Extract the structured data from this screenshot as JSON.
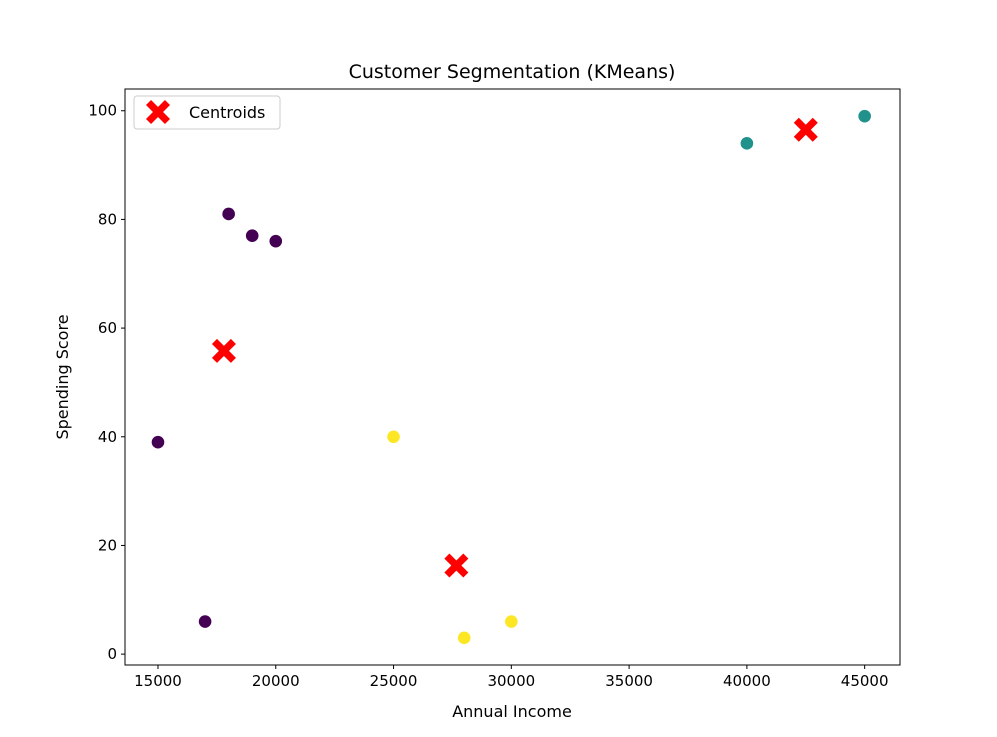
{
  "chart_data": {
    "type": "scatter",
    "title": "Customer Segmentation (KMeans)",
    "xlabel": "Annual Income",
    "ylabel": "Spending Score",
    "xlim": [
      13600,
      46500
    ],
    "ylim": [
      -2,
      104
    ],
    "xticks": [
      15000,
      20000,
      25000,
      30000,
      35000,
      40000,
      45000
    ],
    "yticks": [
      0,
      20,
      40,
      60,
      80,
      100
    ],
    "grid": false,
    "legend_position": "upper left",
    "cluster_colors": [
      "#440154",
      "#21918c",
      "#fde725"
    ],
    "points": [
      {
        "x": 15000,
        "y": 39,
        "cluster": 0
      },
      {
        "x": 17000,
        "y": 6,
        "cluster": 0
      },
      {
        "x": 18000,
        "y": 81,
        "cluster": 0
      },
      {
        "x": 19000,
        "y": 77,
        "cluster": 0
      },
      {
        "x": 20000,
        "y": 76,
        "cluster": 0
      },
      {
        "x": 40000,
        "y": 94,
        "cluster": 1
      },
      {
        "x": 45000,
        "y": 99,
        "cluster": 1
      },
      {
        "x": 25000,
        "y": 40,
        "cluster": 2
      },
      {
        "x": 28000,
        "y": 3,
        "cluster": 2
      },
      {
        "x": 30000,
        "y": 6,
        "cluster": 2
      }
    ],
    "centroids": {
      "name": "Centroids",
      "color": "#ff0000",
      "marker": "X",
      "points": [
        {
          "x": 17800,
          "y": 55.8
        },
        {
          "x": 42500,
          "y": 96.5
        },
        {
          "x": 27667,
          "y": 16.3
        }
      ]
    }
  }
}
